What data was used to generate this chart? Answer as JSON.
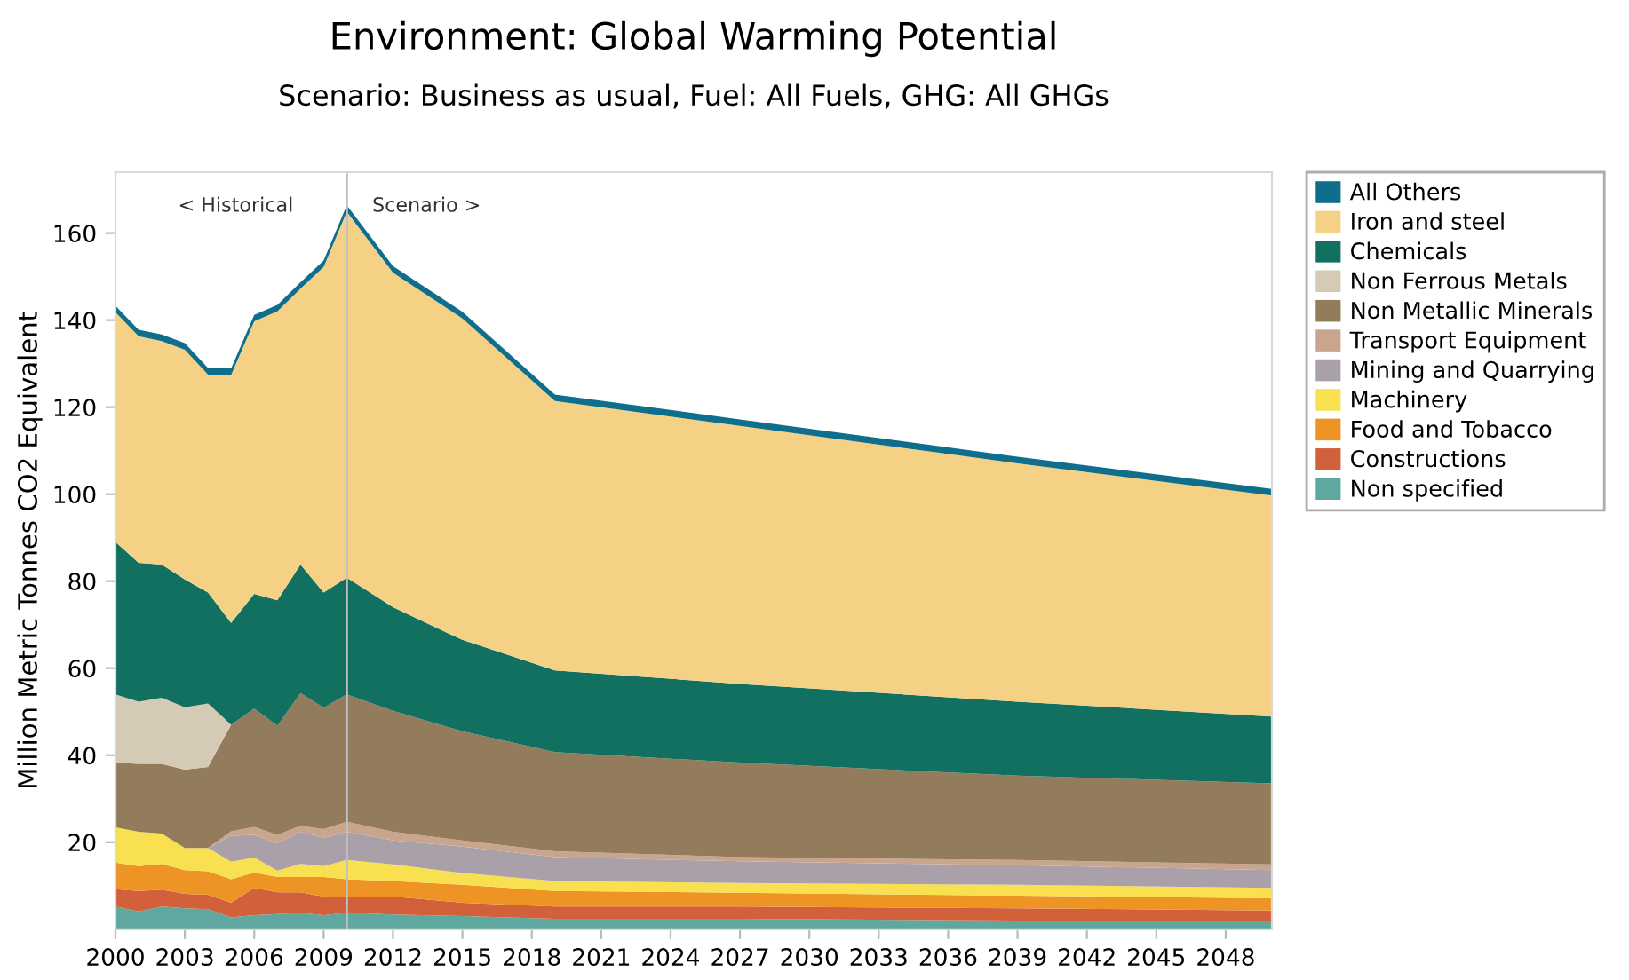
{
  "chart_data": {
    "type": "area",
    "stacked": true,
    "title": "Environment: Global Warming Potential",
    "subtitle": "Scenario: Business as usual, Fuel: All Fuels, GHG: All GHGs",
    "ylabel": "Million Metric Tonnes CO2 Equivalent",
    "x": [
      2000,
      2001,
      2002,
      2003,
      2004,
      2005,
      2006,
      2007,
      2008,
      2009,
      2010,
      2012,
      2015,
      2019,
      2027,
      2039,
      2050
    ],
    "series": [
      {
        "name": "Non specified",
        "color": "#5fa8a0",
        "values": [
          5.2,
          4.1,
          5.2,
          4.8,
          4.6,
          2.7,
          3.2,
          3.5,
          3.8,
          3.2,
          3.8,
          3.4,
          3,
          2.4,
          2.4,
          2,
          2
        ]
      },
      {
        "name": "Constructions",
        "color": "#d2603a",
        "values": [
          4,
          4.7,
          3.9,
          3.3,
          3.3,
          3.4,
          6.3,
          5,
          4.7,
          4.3,
          3.7,
          4.1,
          3.1,
          2.8,
          2.8,
          2.8,
          2.3
        ]
      },
      {
        "name": "Food and Tobacco",
        "color": "#ee9424",
        "values": [
          6.1,
          5.7,
          5.9,
          5.5,
          5.4,
          5.4,
          3.5,
          3.5,
          3.5,
          4.5,
          4,
          3.6,
          4.1,
          3.6,
          3.2,
          2.9,
          2.8
        ]
      },
      {
        "name": "Machinery",
        "color": "#f8e050",
        "values": [
          8.1,
          7.9,
          7,
          5.1,
          5.4,
          4,
          3.5,
          1.5,
          3,
          2.5,
          4.4,
          3.8,
          2.7,
          2.3,
          2.2,
          2.5,
          2.4
        ]
      },
      {
        "name": "Mining and Quarrying",
        "color": "#aaa0aa",
        "values": [
          0,
          0,
          0,
          0,
          0,
          6,
          5.2,
          6.2,
          7.4,
          6.5,
          6.5,
          5.5,
          6.1,
          5.5,
          5,
          4.5,
          4.1
        ]
      },
      {
        "name": "Transport Equipment",
        "color": "#c9a58e",
        "values": [
          0,
          0,
          0,
          0,
          0,
          1,
          1.8,
          2,
          1.4,
          2,
          2.3,
          2,
          1.4,
          1.3,
          1,
          1.2,
          1.3
        ]
      },
      {
        "name": "Non Metallic Minerals",
        "color": "#937c5b",
        "values": [
          14.9,
          15.6,
          16,
          18,
          18.6,
          24.5,
          27.2,
          25.1,
          30.5,
          27.9,
          29.3,
          27.8,
          25.1,
          22.8,
          21.7,
          19.4,
          18.6
        ]
      },
      {
        "name": "Non Ferrous Metals",
        "color": "#d5cab6",
        "values": [
          15.7,
          14.3,
          15.2,
          14.3,
          14.6,
          0,
          0,
          0,
          0,
          0,
          0,
          0,
          0,
          0,
          0,
          0,
          0
        ]
      },
      {
        "name": "Chemicals",
        "color": "#127060",
        "values": [
          35,
          31.9,
          30.6,
          29.4,
          25.5,
          23.4,
          26.4,
          28.8,
          29.5,
          26.5,
          26.8,
          23.8,
          21,
          18.8,
          18.1,
          17,
          15.4
        ]
      },
      {
        "name": "Iron and steel",
        "color": "#f5d185",
        "values": [
          52.8,
          52.1,
          51.4,
          52.8,
          50.1,
          57,
          62.6,
          66.4,
          63.4,
          74.8,
          84.1,
          76.9,
          73.9,
          61.9,
          59.3,
          54.8,
          50.8
        ]
      },
      {
        "name": "All Others",
        "color": "#0f6e8c",
        "values": [
          1.5,
          1.5,
          1.5,
          1.5,
          1.5,
          1.5,
          1.5,
          1.5,
          1.5,
          1.5,
          1.5,
          1.5,
          1.5,
          1.5,
          1.5,
          1.5,
          1.5
        ]
      }
    ],
    "xlim": [
      2000,
      2050
    ],
    "xticks": [
      2000,
      2003,
      2006,
      2009,
      2012,
      2015,
      2018,
      2021,
      2024,
      2027,
      2030,
      2033,
      2036,
      2039,
      2042,
      2045,
      2048
    ],
    "ylim": [
      0,
      174
    ],
    "yticks": [
      20,
      40,
      60,
      80,
      100,
      120,
      140,
      160
    ],
    "ref_lines": [
      {
        "axis": "x",
        "value": 2010,
        "label": null,
        "color": "#c0c0c0"
      }
    ],
    "annotations": [
      "< Historical",
      "Scenario >"
    ],
    "grid": false,
    "legend": "right"
  }
}
